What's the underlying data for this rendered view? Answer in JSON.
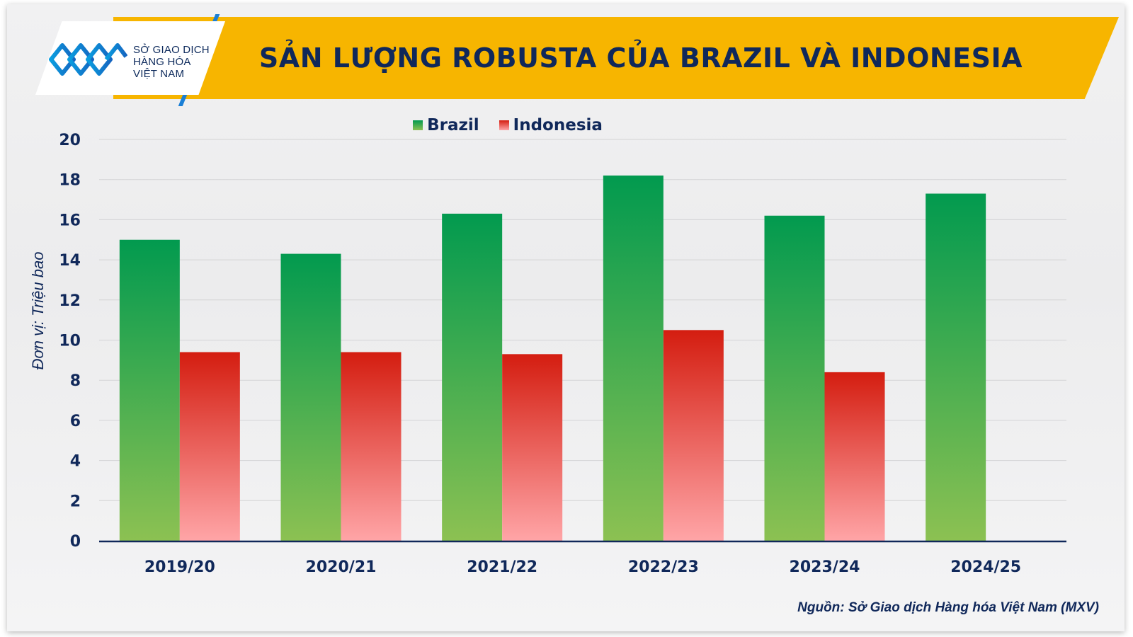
{
  "brand": {
    "lines": [
      "SỞ GIAO DỊCH",
      "HÀNG HÓA",
      "VIỆT NAM"
    ]
  },
  "colors": {
    "banner": "#f7b500",
    "title_text": "#10285a",
    "brazil_top": "#029a4f",
    "brazil_bottom": "#8cc152",
    "indonesia_top": "#d41d10",
    "indonesia_bottom": "#ffa5a7",
    "axis": "#10285a"
  },
  "source_note": "Nguồn: Sở Giao dịch Hàng hóa Việt Nam (MXV)",
  "chart_data": {
    "type": "bar",
    "title": "SẢN LƯỢNG ROBUSTA CỦA BRAZIL VÀ INDONESIA",
    "ylabel": "Đơn vị: Triệu bao",
    "xlabel": "",
    "categories": [
      "2019/20",
      "2020/21",
      "2021/22",
      "2022/23",
      "2023/24",
      "2024/25"
    ],
    "series": [
      {
        "name": "Brazil",
        "values": [
          15.0,
          14.3,
          16.3,
          18.2,
          16.2,
          17.3
        ]
      },
      {
        "name": "Indonesia",
        "values": [
          9.4,
          9.4,
          9.3,
          10.5,
          8.4,
          null
        ]
      }
    ],
    "ylim": [
      0,
      20
    ],
    "yticks": [
      0,
      2,
      4,
      6,
      8,
      10,
      12,
      14,
      16,
      18,
      20
    ],
    "grid": true,
    "legend": "top-center"
  }
}
